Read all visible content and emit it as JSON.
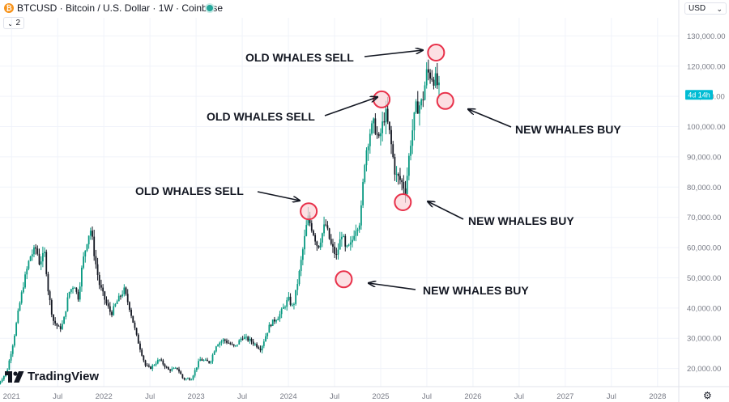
{
  "header": {
    "logo_letter": "₿",
    "title": "BTCUSD · Bitcoin / U.S. Dollar · 1W · Coinbase",
    "indicator_count": "2",
    "currency": "USD",
    "collapse_glyph": "⌄",
    "dropdown_glyph": "⌄"
  },
  "branding": {
    "name": "TradingView",
    "icon": "tv-logo-icon"
  },
  "settings_icon": "gear-icon",
  "colors": {
    "up": "#089981",
    "down": "#131722",
    "annotation": "#e8314a",
    "marker_fill": "#fbd5da",
    "countdown_bg": "#00bcd4"
  },
  "chart_data": {
    "type": "candlestick",
    "price_axis": {
      "ylim": [
        14000,
        136000
      ],
      "ticks": [
        20000,
        30000,
        40000,
        50000,
        60000,
        70000,
        80000,
        90000,
        100000,
        110000,
        120000,
        130000
      ],
      "tick_labels": [
        "20,000.00",
        "30,000.00",
        "40,000.00",
        "50,000.00",
        "60,000.00",
        "70,000.00",
        "80,000.00",
        "90,000.00",
        "100,000.00",
        "110,000.00",
        "120,000.00",
        "130,000.00"
      ]
    },
    "time_axis": {
      "ticks": [
        2021.0,
        2021.5,
        2022.0,
        2022.5,
        2023.0,
        2023.5,
        2024.0,
        2024.5,
        2025.0,
        2025.5,
        2026.0,
        2026.5,
        2027.0,
        2027.5,
        2028.0
      ],
      "tick_labels": [
        "2021",
        "Jul",
        "2022",
        "Jul",
        "2023",
        "Jul",
        "2024",
        "Jul",
        "2025",
        "Jul",
        "2026",
        "Jul",
        "2027",
        "Jul",
        "2028"
      ]
    },
    "countdown_label": "4d 14h",
    "last_price": 110500,
    "price_path": [
      [
        2020.86,
        15000
      ],
      [
        2020.95,
        19000
      ],
      [
        2021.02,
        29000
      ],
      [
        2021.08,
        40000
      ],
      [
        2021.13,
        48000
      ],
      [
        2021.2,
        57000
      ],
      [
        2021.27,
        60000
      ],
      [
        2021.3,
        55000
      ],
      [
        2021.36,
        58000
      ],
      [
        2021.4,
        45000
      ],
      [
        2021.45,
        36000
      ],
      [
        2021.52,
        33000
      ],
      [
        2021.56,
        35000
      ],
      [
        2021.62,
        45000
      ],
      [
        2021.68,
        48000
      ],
      [
        2021.72,
        43000
      ],
      [
        2021.77,
        55000
      ],
      [
        2021.83,
        64000
      ],
      [
        2021.86,
        66000
      ],
      [
        2021.9,
        57000
      ],
      [
        2021.95,
        48000
      ],
      [
        2022.02,
        42000
      ],
      [
        2022.08,
        38000
      ],
      [
        2022.14,
        42000
      ],
      [
        2022.22,
        46000
      ],
      [
        2022.28,
        40000
      ],
      [
        2022.36,
        30000
      ],
      [
        2022.45,
        21000
      ],
      [
        2022.5,
        20000
      ],
      [
        2022.6,
        23000
      ],
      [
        2022.7,
        19500
      ],
      [
        2022.8,
        20000
      ],
      [
        2022.86,
        16500
      ],
      [
        2022.95,
        16700
      ],
      [
        2023.04,
        23000
      ],
      [
        2023.15,
        22000
      ],
      [
        2023.22,
        28000
      ],
      [
        2023.3,
        29500
      ],
      [
        2023.42,
        27000
      ],
      [
        2023.5,
        30500
      ],
      [
        2023.6,
        29000
      ],
      [
        2023.7,
        26500
      ],
      [
        2023.8,
        34500
      ],
      [
        2023.9,
        37500
      ],
      [
        2024.0,
        43000
      ],
      [
        2024.05,
        40000
      ],
      [
        2024.12,
        52000
      ],
      [
        2024.17,
        62000
      ],
      [
        2024.21,
        70000
      ],
      [
        2024.26,
        66000
      ],
      [
        2024.32,
        60000
      ],
      [
        2024.4,
        68000
      ],
      [
        2024.46,
        61000
      ],
      [
        2024.52,
        57000
      ],
      [
        2024.58,
        65000
      ],
      [
        2024.62,
        59000
      ],
      [
        2024.68,
        61000
      ],
      [
        2024.72,
        66000
      ],
      [
        2024.78,
        69000
      ],
      [
        2024.83,
        90000
      ],
      [
        2024.88,
        98000
      ],
      [
        2024.93,
        101000
      ],
      [
        2024.98,
        95000
      ],
      [
        2025.05,
        105000
      ],
      [
        2025.1,
        97000
      ],
      [
        2025.16,
        84000
      ],
      [
        2025.22,
        82000
      ],
      [
        2025.27,
        79000
      ],
      [
        2025.32,
        94000
      ],
      [
        2025.38,
        106000
      ],
      [
        2025.45,
        108000
      ],
      [
        2025.5,
        118000
      ],
      [
        2025.55,
        117000
      ],
      [
        2025.6,
        115000
      ],
      [
        2025.65,
        110500
      ]
    ],
    "annotations": [
      {
        "label": "OLD WHALES SELL",
        "date": 2024.22,
        "price": 72000,
        "kind": "sell"
      },
      {
        "label": "NEW WHALES BUY",
        "date": 2024.6,
        "price": 49500,
        "kind": "buy"
      },
      {
        "label": "OLD WHALES SELL",
        "date": 2025.01,
        "price": 109000,
        "kind": "sell"
      },
      {
        "label": "NEW WHALES BUY",
        "date": 2025.24,
        "price": 75000,
        "kind": "buy"
      },
      {
        "label": "OLD WHALES SELL",
        "date": 2025.6,
        "price": 124500,
        "kind": "sell"
      },
      {
        "label": "NEW WHALES BUY",
        "date": 2025.7,
        "price": 108500,
        "kind": "buy"
      }
    ]
  }
}
